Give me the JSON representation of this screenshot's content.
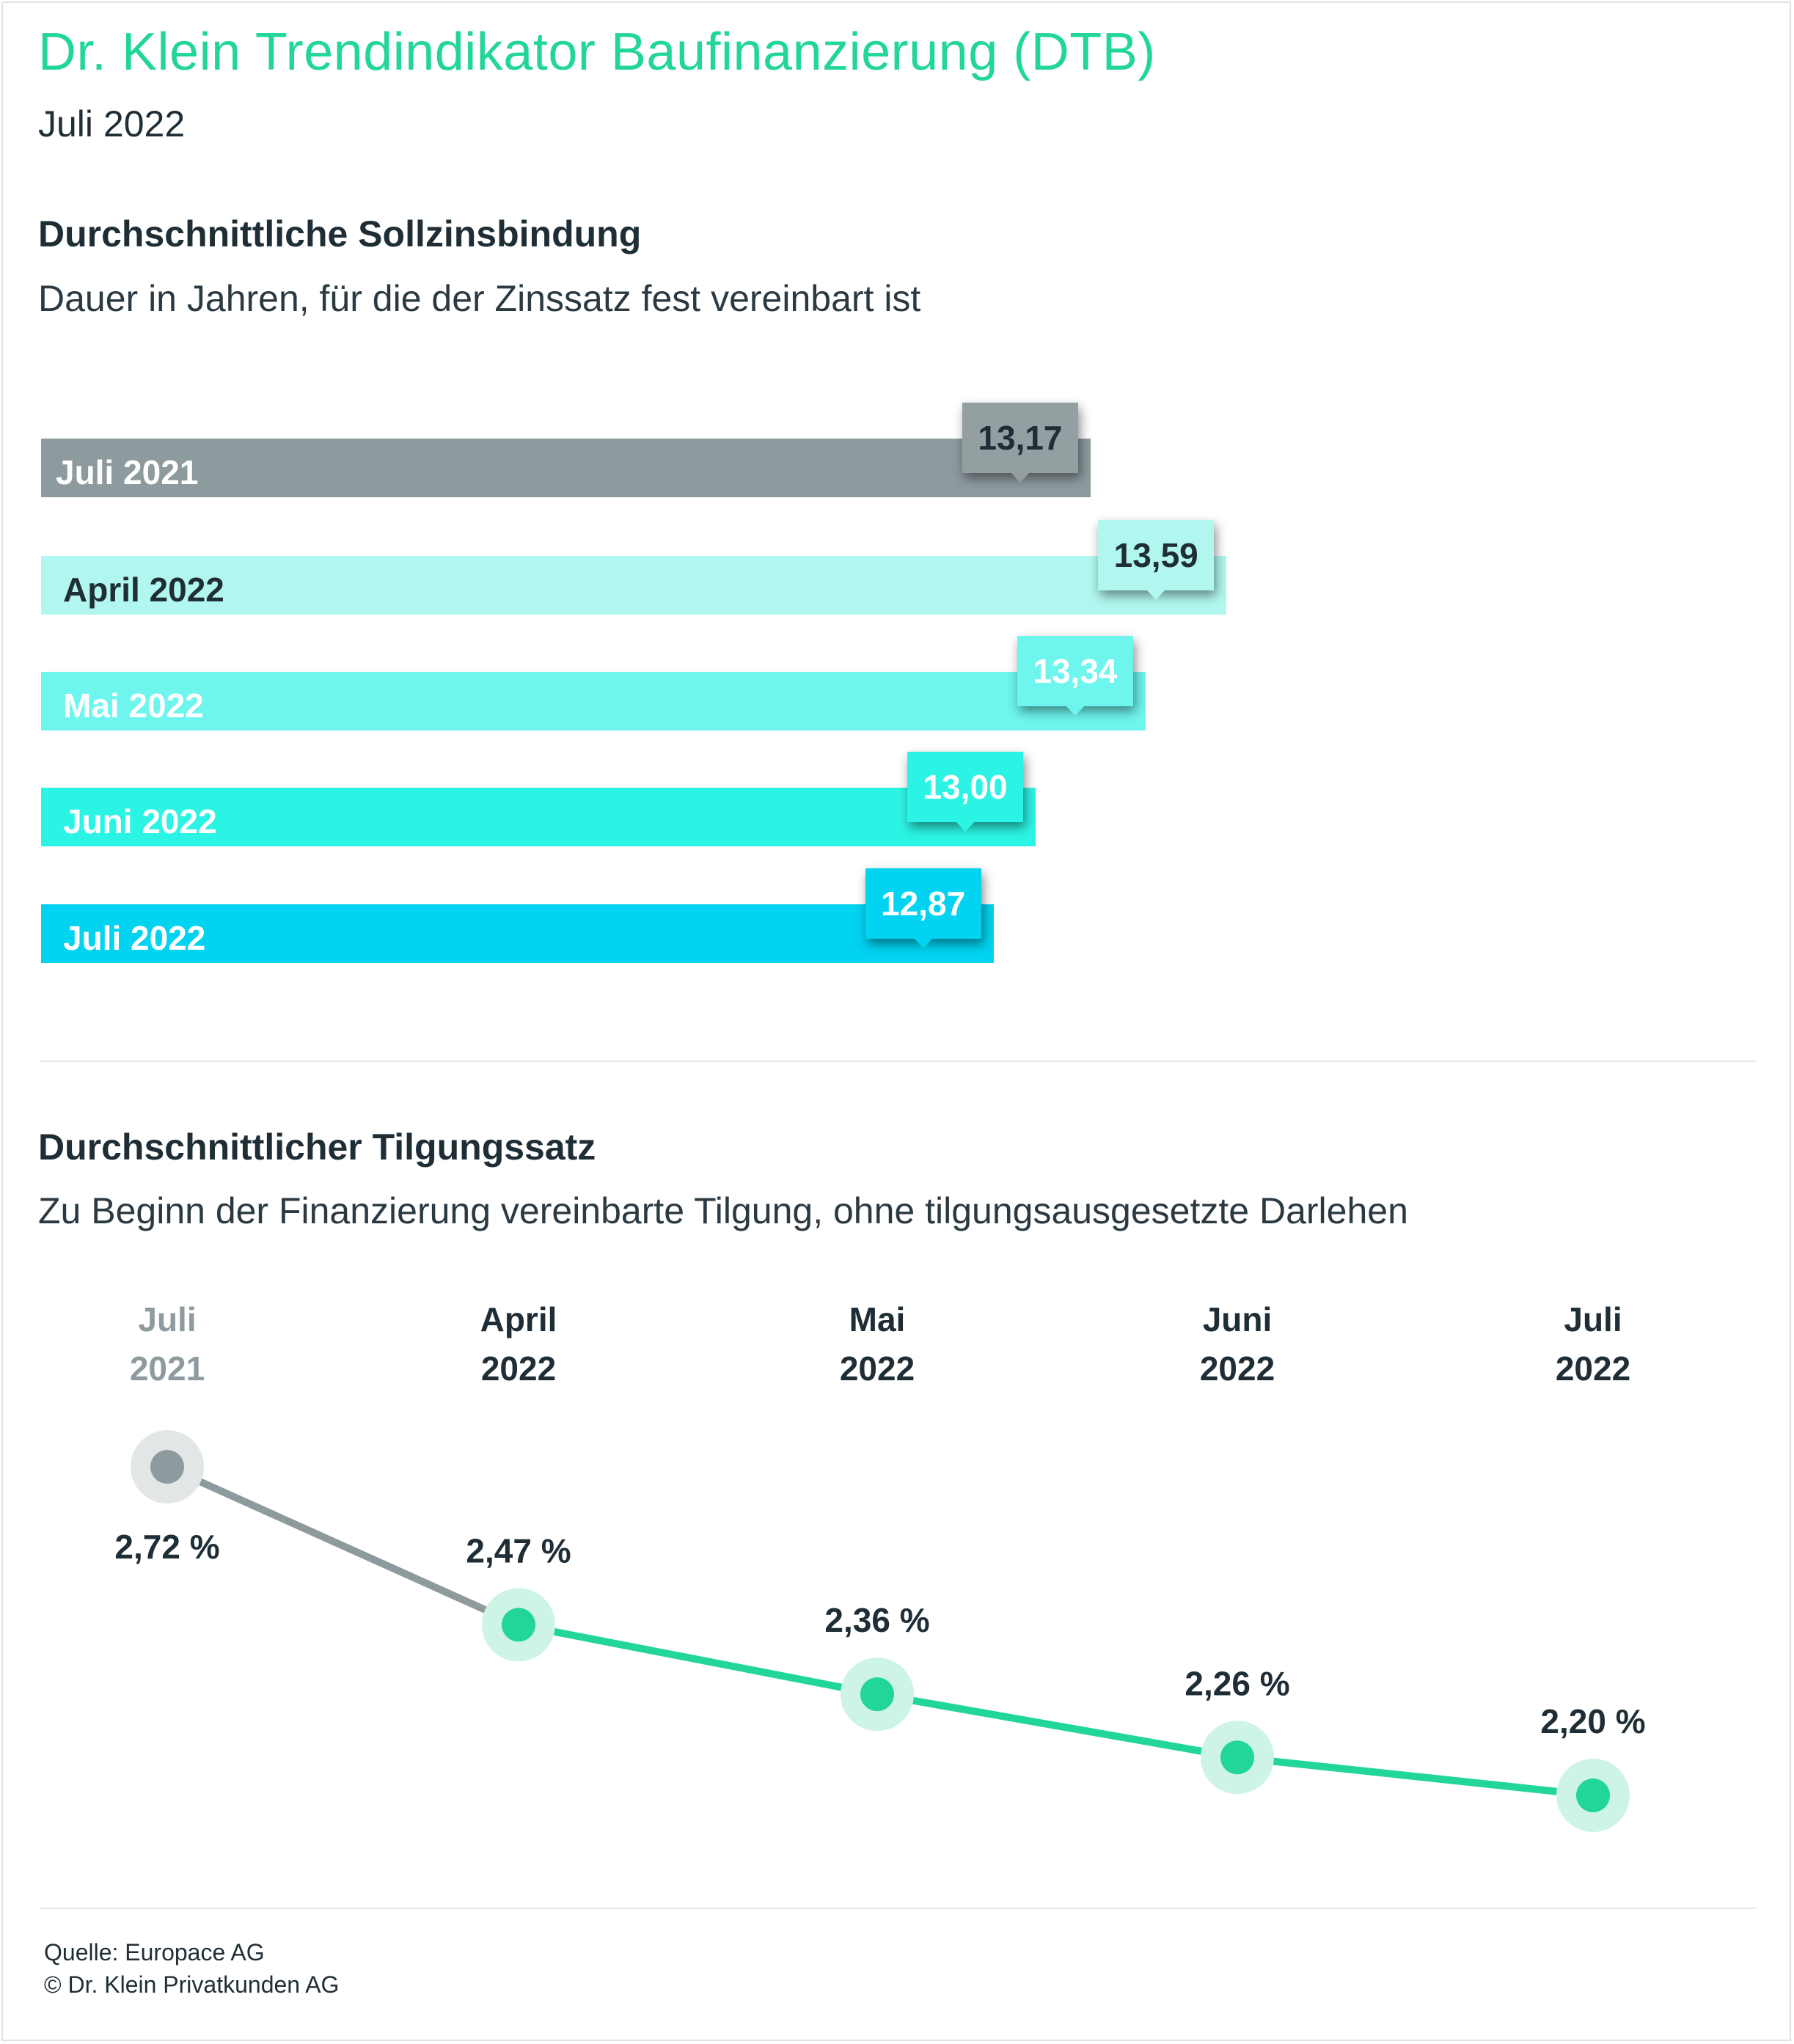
{
  "title": "Dr. Klein Trendindikator Baufinanzierung (DTB)",
  "subtitle": "Juli 2022",
  "colors": {
    "accent": "#22d59a",
    "dark": "#1f2e36",
    "grey": "#8d9a9e"
  },
  "chart_data": [
    {
      "type": "bar",
      "orientation": "horizontal",
      "title": "Durchschnittliche Sollzinsbindung",
      "subtitle": "Dauer in Jahren, für die der Zinssatz fest vereinbart ist",
      "categories": [
        "Juli 2021",
        "April 2022",
        "Mai 2022",
        "Juni 2022",
        "Juli 2022"
      ],
      "values": [
        13.17,
        13.59,
        13.34,
        13.0,
        12.87
      ],
      "value_labels": [
        "13,17",
        "13,59",
        "13,34",
        "13,00",
        "12,87"
      ],
      "bar_colors": [
        "#8d9a9e",
        "#b1f7ef",
        "#6ef5ee",
        "#2cf4e4",
        "#02d3f0"
      ],
      "label_colors": [
        "#ffffff",
        "#1f2e36",
        "#ffffff",
        "#ffffff",
        "#ffffff"
      ]
    },
    {
      "type": "line",
      "title": "Durchschnittlicher Tilgungssatz",
      "subtitle": "Zu Beginn der Finanzierung vereinbarte Tilgung, ohne tilgungsausgesetzte Darlehen",
      "categories": [
        [
          "Juli",
          "2021"
        ],
        [
          "April",
          "2022"
        ],
        [
          "Mai",
          "2022"
        ],
        [
          "Juni",
          "2022"
        ],
        [
          "Juli",
          "2022"
        ]
      ],
      "values": [
        2.72,
        2.47,
        2.36,
        2.26,
        2.2
      ],
      "value_labels": [
        "2,72 %",
        "2,47 %",
        "2,36 %",
        "2,26 %",
        "2,20 %"
      ],
      "line_colors": [
        "#8d9a9e",
        "#22d59a",
        "#22d59a",
        "#22d59a"
      ]
    }
  ],
  "footer": {
    "source": "Quelle: Europace AG",
    "copyright": "© Dr. Klein Privatkunden AG"
  }
}
